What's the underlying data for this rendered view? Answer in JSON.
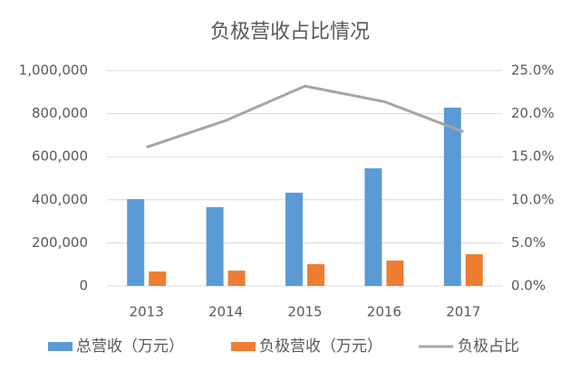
{
  "chart_data": {
    "type": "combo",
    "title": "负极营收占比情况",
    "categories": [
      "2013",
      "2014",
      "2015",
      "2016",
      "2017"
    ],
    "series": [
      {
        "name": "总营收（万元）",
        "type": "bar",
        "color": "#5b9bd5",
        "values": [
          403000,
          366000,
          433000,
          546000,
          828000
        ]
      },
      {
        "name": "负极营收（万元）",
        "type": "bar",
        "color": "#ed7d31",
        "values": [
          67000,
          71000,
          101000,
          118000,
          147000
        ]
      },
      {
        "name": "负极占比",
        "type": "line",
        "axis": "y2",
        "color": "#a5a5a5",
        "values": [
          16.1,
          19.2,
          23.2,
          21.4,
          17.9
        ]
      }
    ],
    "ylim": [
      0,
      1000000
    ],
    "yticks": [
      0,
      {
        "value": 200000,
        "label": "200,000"
      },
      {
        "value": 400000,
        "label": "400,000"
      },
      {
        "value": 600000,
        "label": "600,000"
      },
      {
        "value": 800000,
        "label": "800,000"
      },
      {
        "value": 1000000,
        "label": "1,000,000"
      }
    ],
    "y2lim": [
      0,
      25
    ],
    "y2ticks": [
      {
        "value": 0,
        "label": "0.0%"
      },
      {
        "value": 5,
        "label": "5.0%"
      },
      {
        "value": 10,
        "label": "10.0%"
      },
      {
        "value": 15,
        "label": "15.0%"
      },
      {
        "value": 20,
        "label": "20.0%"
      },
      {
        "value": 25,
        "label": "25.0%"
      }
    ],
    "grid": true,
    "legend": "bottom"
  }
}
